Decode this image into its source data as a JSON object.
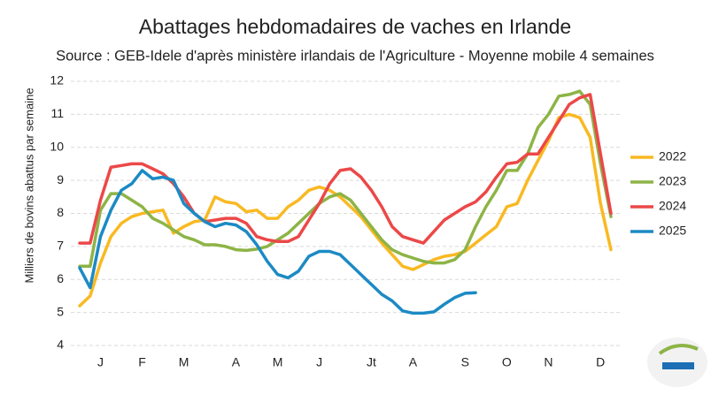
{
  "chart_data": {
    "type": "line",
    "title": "Abattages hebdomadaires de vaches en Irlande",
    "subtitle": "Source : GEB-Idele d'après ministère irlandais de l'Agriculture - Moyenne mobile 4 semaines",
    "y_label": "Milliers de bovins abattus par semaine",
    "categories": [
      null,
      null,
      "J",
      null,
      null,
      null,
      "F",
      null,
      null,
      null,
      "M",
      null,
      null,
      null,
      null,
      "A",
      null,
      null,
      null,
      "M",
      null,
      null,
      null,
      "J",
      null,
      null,
      null,
      null,
      "Jt",
      null,
      null,
      null,
      "A",
      null,
      null,
      null,
      null,
      "S",
      null,
      null,
      null,
      "O",
      null,
      null,
      null,
      "N",
      null,
      null,
      null,
      null,
      "D",
      null
    ],
    "ylim": [
      4,
      12
    ],
    "yticks": [
      4,
      5,
      6,
      7,
      8,
      9,
      10,
      11,
      12
    ],
    "grid": true,
    "legend": "right",
    "series": [
      {
        "name": "2022",
        "color": "#f9b922",
        "values": [
          5.2,
          5.5,
          6.5,
          7.3,
          7.7,
          7.9,
          8.0,
          8.05,
          8.1,
          7.4,
          7.6,
          7.75,
          7.8,
          8.5,
          8.35,
          8.3,
          8.05,
          8.1,
          7.85,
          7.85,
          8.2,
          8.4,
          8.7,
          8.8,
          8.7,
          8.5,
          8.2,
          7.9,
          7.5,
          7.1,
          6.75,
          6.4,
          6.3,
          6.45,
          6.6,
          6.7,
          6.75,
          6.85,
          7.1,
          7.35,
          7.6,
          8.2,
          8.3,
          9.0,
          9.6,
          10.2,
          10.9,
          11.0,
          10.9,
          10.3,
          8.3,
          6.9
        ]
      },
      {
        "name": "2023",
        "color": "#8db446",
        "values": [
          6.4,
          6.4,
          8.1,
          8.6,
          8.6,
          8.4,
          8.2,
          7.85,
          7.7,
          7.5,
          7.3,
          7.2,
          7.05,
          7.05,
          7.0,
          6.9,
          6.88,
          6.92,
          7.0,
          7.2,
          7.4,
          7.7,
          8.0,
          8.3,
          8.5,
          8.6,
          8.4,
          8.0,
          7.6,
          7.2,
          6.9,
          6.75,
          6.65,
          6.55,
          6.5,
          6.5,
          6.6,
          6.9,
          7.6,
          8.2,
          8.7,
          9.3,
          9.3,
          9.8,
          10.6,
          11.0,
          11.55,
          11.6,
          11.7,
          11.3,
          9.5,
          7.9
        ]
      },
      {
        "name": "2024",
        "color": "#ec4848",
        "values": [
          7.1,
          7.1,
          8.4,
          9.4,
          9.45,
          9.5,
          9.5,
          9.35,
          9.2,
          8.9,
          8.5,
          8.0,
          7.75,
          7.8,
          7.85,
          7.85,
          7.7,
          7.3,
          7.2,
          7.15,
          7.15,
          7.3,
          7.8,
          8.3,
          8.9,
          9.3,
          9.35,
          9.1,
          8.7,
          8.2,
          7.6,
          7.3,
          7.2,
          7.1,
          7.45,
          7.8,
          8.0,
          8.2,
          8.35,
          8.65,
          9.1,
          9.5,
          9.55,
          9.8,
          9.8,
          10.3,
          10.8,
          11.3,
          11.5,
          11.6,
          9.8,
          8.0
        ]
      },
      {
        "name": "2025",
        "color": "#1c8ac4",
        "values": [
          6.35,
          5.75,
          7.3,
          8.1,
          8.7,
          8.9,
          9.3,
          9.05,
          9.1,
          9.0,
          8.3,
          8.0,
          7.75,
          7.6,
          7.7,
          7.65,
          7.45,
          7.05,
          6.55,
          6.15,
          6.05,
          6.25,
          6.7,
          6.85,
          6.85,
          6.75,
          6.45,
          6.15,
          5.85,
          5.55,
          5.35,
          5.05,
          4.98,
          4.98,
          5.02,
          5.25,
          5.45,
          5.58,
          5.6,
          null,
          null,
          null,
          null,
          null,
          null,
          null,
          null,
          null,
          null,
          null,
          null,
          null
        ]
      }
    ]
  }
}
